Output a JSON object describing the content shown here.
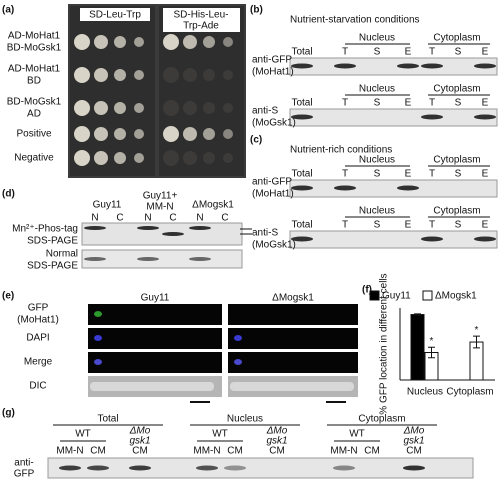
{
  "panels": {
    "a": {
      "label": "(a)",
      "media": [
        [
          "SD-Leu-Trp"
        ],
        [
          "SD-His-Leu-",
          "Trp-Ade"
        ]
      ],
      "rows": [
        [
          "AD-MoHat1",
          "BD-MoGsk1"
        ],
        [
          "AD-MoHat1",
          "BD"
        ],
        [
          "BD-MoGsk1",
          "AD"
        ],
        [
          "Positive"
        ],
        [
          "Negative"
        ]
      ]
    },
    "b": {
      "label": "(b)",
      "title": "Nutrient-starvation conditions",
      "blots": [
        {
          "antibody": [
            "anti-GFP",
            "(MoHat1)"
          ],
          "groups": [
            "Total",
            "Nucleus",
            "Cytoplasm"
          ],
          "lanes": [
            "T",
            "S",
            "E",
            "T",
            "S",
            "E"
          ]
        },
        {
          "antibody": [
            "anti-S",
            "(MoGsk1)"
          ],
          "groups": [
            "Total",
            "Nucleus",
            "Cytoplasm"
          ],
          "lanes": [
            "T",
            "S",
            "E",
            "T",
            "S",
            "E"
          ]
        }
      ]
    },
    "c": {
      "label": "(c)",
      "title": "Nutrient-rich conditions",
      "blots": [
        {
          "antibody": [
            "anti-GFP",
            "(MoHat1)"
          ],
          "groups": [
            "Total",
            "Nucleus",
            "Cytoplasm"
          ],
          "lanes": [
            "T",
            "S",
            "E",
            "T",
            "S",
            "E"
          ]
        },
        {
          "antibody": [
            "anti-S",
            "(MoGsk1)"
          ],
          "groups": [
            "Total",
            "Nucleus",
            "Cytoplasm"
          ],
          "lanes": [
            "T",
            "S",
            "E",
            "T",
            "S",
            "E"
          ]
        }
      ]
    },
    "d": {
      "label": "(d)",
      "strains": [
        [
          "Guy11"
        ],
        [
          "Guy11+",
          "MM-N"
        ],
        [
          "ΔMogsk1"
        ]
      ],
      "lanes": [
        "N",
        "C",
        "N",
        "C",
        "N",
        "C"
      ],
      "gels": [
        [
          "Mn²⁺-Phos-tag",
          "SDS-PAGE"
        ],
        [
          "Normal",
          "SDS-PAGE"
        ]
      ]
    },
    "e": {
      "label": "(e)",
      "strains": [
        "Guy11",
        "ΔMogsk1"
      ],
      "channels": [
        [
          "GFP",
          "(MoHat1)"
        ],
        [
          "DAPI"
        ],
        [
          "Merge"
        ],
        [
          "DIC"
        ]
      ]
    },
    "g": {
      "label": "(g)",
      "antibody": [
        "anti-",
        "GFP"
      ],
      "groups": [
        {
          "name": "Total",
          "strains": [
            {
              "name": [
                "WT"
              ],
              "lanes": [
                "MM-N",
                "CM"
              ]
            },
            {
              "name": [
                "ΔMo",
                "gsk1"
              ],
              "lanes": [
                "CM"
              ]
            }
          ]
        },
        {
          "name": "Nucleus",
          "strains": [
            {
              "name": [
                "WT"
              ],
              "lanes": [
                "MM-N",
                "CM"
              ]
            },
            {
              "name": [
                "ΔMo",
                "gsk1"
              ],
              "lanes": [
                "CM"
              ]
            }
          ]
        },
        {
          "name": "Cytoplasm",
          "strains": [
            {
              "name": [
                "WT"
              ],
              "lanes": [
                "MM-N",
                "CM"
              ]
            },
            {
              "name": [
                "ΔMo",
                "gsk1"
              ],
              "lanes": [
                "CM"
              ]
            }
          ]
        }
      ]
    }
  },
  "chart_data": {
    "type": "bar",
    "label": "(f)",
    "ylabel": "% GFP location in different cells",
    "categories": [
      "Nucleus",
      "Cytoplasm"
    ],
    "series": [
      {
        "name": "Guy11",
        "color": "#000000",
        "values": [
          100,
          0
        ],
        "errors": [
          1,
          0
        ]
      },
      {
        "name": "ΔMogsk1",
        "color": "#ffffff",
        "values": [
          42,
          58
        ],
        "errors": [
          8,
          9
        ],
        "markers": [
          "*",
          "*"
        ]
      }
    ],
    "ylim": [
      0,
      110
    ],
    "grid": false
  }
}
